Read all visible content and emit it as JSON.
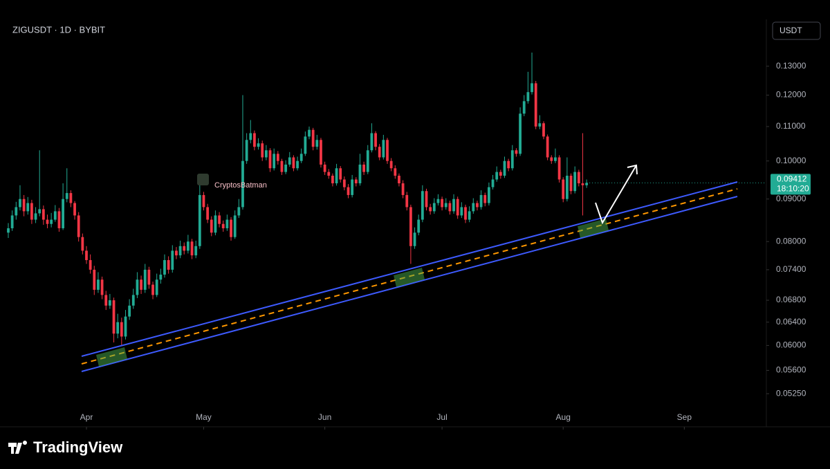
{
  "chart_data": {
    "type": "candlestick",
    "symbol": "ZIGUSDT · 1D · BYBIT",
    "currency": "USDT",
    "watermark": "CryptosBatman",
    "brand": "TradingView",
    "countdown": "18:10:20",
    "log_scale": true,
    "up_color": "#22ab94",
    "down_color": "#f23645",
    "last_color": "#22ab94",
    "xlim": [
      -2.124,
      194
    ],
    "xticks": [
      {
        "value": 20,
        "label": "Apr"
      },
      {
        "value": 50,
        "label": "May"
      },
      {
        "value": 81,
        "label": "Jun"
      },
      {
        "value": 111,
        "label": "Jul"
      },
      {
        "value": 142,
        "label": "Aug"
      },
      {
        "value": 173,
        "label": "Sep"
      }
    ],
    "ylim": [
      0.0479,
      0.148
    ],
    "yticks": [
      {
        "value": 0.0525,
        "label": "0.05250"
      },
      {
        "value": 0.056,
        "label": "0.05600"
      },
      {
        "value": 0.06,
        "label": "0.06000"
      },
      {
        "value": 0.064,
        "label": "0.06400"
      },
      {
        "value": 0.068,
        "label": "0.06800"
      },
      {
        "value": 0.074,
        "label": "0.07400"
      },
      {
        "value": 0.08,
        "label": "0.08000"
      },
      {
        "value": 0.09,
        "label": "0.09000"
      },
      {
        "value": 0.1,
        "label": "0.10000"
      },
      {
        "value": 0.11,
        "label": "0.11000"
      },
      {
        "value": 0.12,
        "label": "0.12000"
      },
      {
        "value": 0.13,
        "label": "0.13000"
      }
    ],
    "candles": [
      [
        0.082,
        0.0842,
        0.0808,
        0.083
      ],
      [
        0.083,
        0.0872,
        0.0824,
        0.086
      ],
      [
        0.086,
        0.0893,
        0.085,
        0.088
      ],
      [
        0.088,
        0.0935,
        0.0872,
        0.09
      ],
      [
        0.09,
        0.091,
        0.0858,
        0.087
      ],
      [
        0.087,
        0.0905,
        0.0862,
        0.089
      ],
      [
        0.089,
        0.0898,
        0.084,
        0.085
      ],
      [
        0.085,
        0.088,
        0.0842,
        0.0865
      ],
      [
        0.0865,
        0.103,
        0.0858,
        0.0875
      ],
      [
        0.0875,
        0.0884,
        0.0838,
        0.085
      ],
      [
        0.085,
        0.0862,
        0.083,
        0.084
      ],
      [
        0.084,
        0.0866,
        0.0832,
        0.085
      ],
      [
        0.085,
        0.0885,
        0.0845,
        0.087
      ],
      [
        0.087,
        0.0878,
        0.0822,
        0.083
      ],
      [
        0.083,
        0.094,
        0.0826,
        0.09
      ],
      [
        0.09,
        0.098,
        0.0892,
        0.0915
      ],
      [
        0.0915,
        0.0922,
        0.088,
        0.089
      ],
      [
        0.089,
        0.0895,
        0.085,
        0.086
      ],
      [
        0.086,
        0.0868,
        0.08,
        0.081
      ],
      [
        0.081,
        0.0818,
        0.0772,
        0.078
      ],
      [
        0.078,
        0.079,
        0.0752,
        0.076
      ],
      [
        0.076,
        0.0772,
        0.0732,
        0.074
      ],
      [
        0.074,
        0.0748,
        0.069,
        0.07
      ],
      [
        0.07,
        0.0735,
        0.0694,
        0.072
      ],
      [
        0.072,
        0.0726,
        0.0682,
        0.069
      ],
      [
        0.069,
        0.0698,
        0.0662,
        0.067
      ],
      [
        0.067,
        0.0692,
        0.0664,
        0.068
      ],
      [
        0.068,
        0.0685,
        0.0605,
        0.062
      ],
      [
        0.062,
        0.0655,
        0.0612,
        0.064
      ],
      [
        0.064,
        0.0648,
        0.06,
        0.0615
      ],
      [
        0.0615,
        0.0662,
        0.061,
        0.065
      ],
      [
        0.065,
        0.0682,
        0.0644,
        0.067
      ],
      [
        0.067,
        0.0702,
        0.0664,
        0.069
      ],
      [
        0.069,
        0.0735,
        0.0684,
        0.072
      ],
      [
        0.072,
        0.0728,
        0.0692,
        0.07
      ],
      [
        0.07,
        0.0752,
        0.0694,
        0.074
      ],
      [
        0.074,
        0.0746,
        0.0702,
        0.071
      ],
      [
        0.071,
        0.0716,
        0.0682,
        0.069
      ],
      [
        0.069,
        0.0732,
        0.0686,
        0.072
      ],
      [
        0.072,
        0.0742,
        0.0712,
        0.073
      ],
      [
        0.073,
        0.0772,
        0.0724,
        0.076
      ],
      [
        0.076,
        0.0768,
        0.0732,
        0.074
      ],
      [
        0.074,
        0.0792,
        0.0734,
        0.078
      ],
      [
        0.078,
        0.0788,
        0.0762,
        0.077
      ],
      [
        0.077,
        0.0802,
        0.0764,
        0.079
      ],
      [
        0.079,
        0.0798,
        0.0772,
        0.078
      ],
      [
        0.078,
        0.0815,
        0.0774,
        0.08
      ],
      [
        0.08,
        0.0806,
        0.0762,
        0.077
      ],
      [
        0.077,
        0.0802,
        0.0764,
        0.079
      ],
      [
        0.079,
        0.0935,
        0.0784,
        0.091
      ],
      [
        0.091,
        0.0918,
        0.0872,
        0.088
      ],
      [
        0.088,
        0.0888,
        0.0842,
        0.085
      ],
      [
        0.085,
        0.0858,
        0.0812,
        0.082
      ],
      [
        0.082,
        0.0872,
        0.0814,
        0.086
      ],
      [
        0.086,
        0.0868,
        0.0832,
        0.084
      ],
      [
        0.084,
        0.0848,
        0.0822,
        0.083
      ],
      [
        0.083,
        0.0862,
        0.0824,
        0.085
      ],
      [
        0.085,
        0.0856,
        0.0802,
        0.081
      ],
      [
        0.081,
        0.0872,
        0.0806,
        0.086
      ],
      [
        0.086,
        0.09,
        0.0854,
        0.088
      ],
      [
        0.088,
        0.12,
        0.0874,
        0.1
      ],
      [
        0.1,
        0.108,
        0.0992,
        0.106
      ],
      [
        0.106,
        0.112,
        0.105,
        0.108
      ],
      [
        0.108,
        0.1088,
        0.103,
        0.104
      ],
      [
        0.104,
        0.1065,
        0.1032,
        0.105
      ],
      [
        0.105,
        0.1058,
        0.1,
        0.101
      ],
      [
        0.101,
        0.1045,
        0.1002,
        0.103
      ],
      [
        0.103,
        0.1036,
        0.097,
        0.098
      ],
      [
        0.098,
        0.1035,
        0.0974,
        0.102
      ],
      [
        0.102,
        0.1028,
        0.099,
        0.1
      ],
      [
        0.1,
        0.1006,
        0.0962,
        0.097
      ],
      [
        0.097,
        0.1002,
        0.0964,
        0.099
      ],
      [
        0.099,
        0.1025,
        0.0984,
        0.101
      ],
      [
        0.101,
        0.1016,
        0.0972,
        0.098
      ],
      [
        0.098,
        0.1012,
        0.0974,
        0.1
      ],
      [
        0.1,
        0.1035,
        0.0994,
        0.102
      ],
      [
        0.102,
        0.1085,
        0.1014,
        0.107
      ],
      [
        0.107,
        0.11,
        0.1062,
        0.109
      ],
      [
        0.109,
        0.1096,
        0.103,
        0.104
      ],
      [
        0.104,
        0.1075,
        0.1032,
        0.106
      ],
      [
        0.106,
        0.1066,
        0.0982,
        0.099
      ],
      [
        0.099,
        0.0998,
        0.0962,
        0.097
      ],
      [
        0.097,
        0.0978,
        0.0952,
        0.096
      ],
      [
        0.096,
        0.0966,
        0.0932,
        0.094
      ],
      [
        0.094,
        0.0992,
        0.0934,
        0.098
      ],
      [
        0.098,
        0.0986,
        0.0942,
        0.095
      ],
      [
        0.095,
        0.0958,
        0.0922,
        0.093
      ],
      [
        0.093,
        0.0938,
        0.0902,
        0.091
      ],
      [
        0.091,
        0.0962,
        0.0904,
        0.095
      ],
      [
        0.095,
        0.0956,
        0.0932,
        0.094
      ],
      [
        0.094,
        0.102,
        0.0934,
        0.099
      ],
      [
        0.099,
        0.0998,
        0.0962,
        0.097
      ],
      [
        0.097,
        0.1045,
        0.0964,
        0.103
      ],
      [
        0.103,
        0.111,
        0.1024,
        0.108
      ],
      [
        0.108,
        0.1086,
        0.103,
        0.104
      ],
      [
        0.104,
        0.1048,
        0.1002,
        0.101
      ],
      [
        0.101,
        0.1075,
        0.1004,
        0.106
      ],
      [
        0.106,
        0.1066,
        0.0992,
        0.1
      ],
      [
        0.1,
        0.1008,
        0.0972,
        0.098
      ],
      [
        0.098,
        0.0988,
        0.0952,
        0.096
      ],
      [
        0.096,
        0.0966,
        0.0932,
        0.094
      ],
      [
        0.094,
        0.0948,
        0.0902,
        0.091
      ],
      [
        0.091,
        0.0918,
        0.0872,
        0.088
      ],
      [
        0.088,
        0.0886,
        0.0752,
        0.079
      ],
      [
        0.079,
        0.0832,
        0.0784,
        0.082
      ],
      [
        0.082,
        0.0862,
        0.0814,
        0.085
      ],
      [
        0.085,
        0.0935,
        0.0844,
        0.092
      ],
      [
        0.092,
        0.0926,
        0.0872,
        0.088
      ],
      [
        0.088,
        0.0888,
        0.0862,
        0.087
      ],
      [
        0.087,
        0.0902,
        0.0864,
        0.089
      ],
      [
        0.089,
        0.0912,
        0.0884,
        0.09
      ],
      [
        0.09,
        0.0906,
        0.0872,
        0.088
      ],
      [
        0.088,
        0.0902,
        0.0874,
        0.089
      ],
      [
        0.089,
        0.0896,
        0.0862,
        0.087
      ],
      [
        0.087,
        0.0912,
        0.0864,
        0.09
      ],
      [
        0.09,
        0.0906,
        0.0852,
        0.086
      ],
      [
        0.086,
        0.0892,
        0.0854,
        0.088
      ],
      [
        0.088,
        0.0886,
        0.0842,
        0.085
      ],
      [
        0.085,
        0.0882,
        0.0844,
        0.087
      ],
      [
        0.087,
        0.0902,
        0.0864,
        0.089
      ],
      [
        0.089,
        0.0896,
        0.0872,
        0.088
      ],
      [
        0.088,
        0.0922,
        0.0874,
        0.091
      ],
      [
        0.091,
        0.0916,
        0.0882,
        0.089
      ],
      [
        0.089,
        0.0942,
        0.0884,
        0.093
      ],
      [
        0.093,
        0.0962,
        0.0924,
        0.095
      ],
      [
        0.095,
        0.0985,
        0.0944,
        0.097
      ],
      [
        0.097,
        0.0976,
        0.0952,
        0.096
      ],
      [
        0.096,
        0.1012,
        0.0954,
        0.1
      ],
      [
        0.1,
        0.1006,
        0.0972,
        0.098
      ],
      [
        0.098,
        0.1045,
        0.0974,
        0.103
      ],
      [
        0.103,
        0.1036,
        0.1012,
        0.102
      ],
      [
        0.102,
        0.116,
        0.1014,
        0.114
      ],
      [
        0.114,
        0.12,
        0.1132,
        0.118
      ],
      [
        0.118,
        0.128,
        0.1172,
        0.121
      ],
      [
        0.121,
        0.135,
        0.1202,
        0.124
      ],
      [
        0.124,
        0.1248,
        0.1092,
        0.11
      ],
      [
        0.11,
        0.1135,
        0.1092,
        0.111
      ],
      [
        0.111,
        0.1116,
        0.1062,
        0.107
      ],
      [
        0.107,
        0.1076,
        0.1002,
        0.101
      ],
      [
        0.101,
        0.1016,
        0.0992,
        0.1
      ],
      [
        0.1,
        0.1035,
        0.0994,
        0.101
      ],
      [
        0.101,
        0.1016,
        0.0942,
        0.095
      ],
      [
        0.095,
        0.0956,
        0.0892,
        0.09
      ],
      [
        0.09,
        0.101,
        0.0894,
        0.096
      ],
      [
        0.096,
        0.0966,
        0.0912,
        0.092
      ],
      [
        0.092,
        0.0985,
        0.0914,
        0.097
      ],
      [
        0.097,
        0.0976,
        0.0932,
        0.094
      ],
      [
        0.094,
        0.108,
        0.086,
        0.0935
      ],
      [
        0.0935,
        0.095,
        0.0928,
        0.09412
      ]
    ]
  }
}
